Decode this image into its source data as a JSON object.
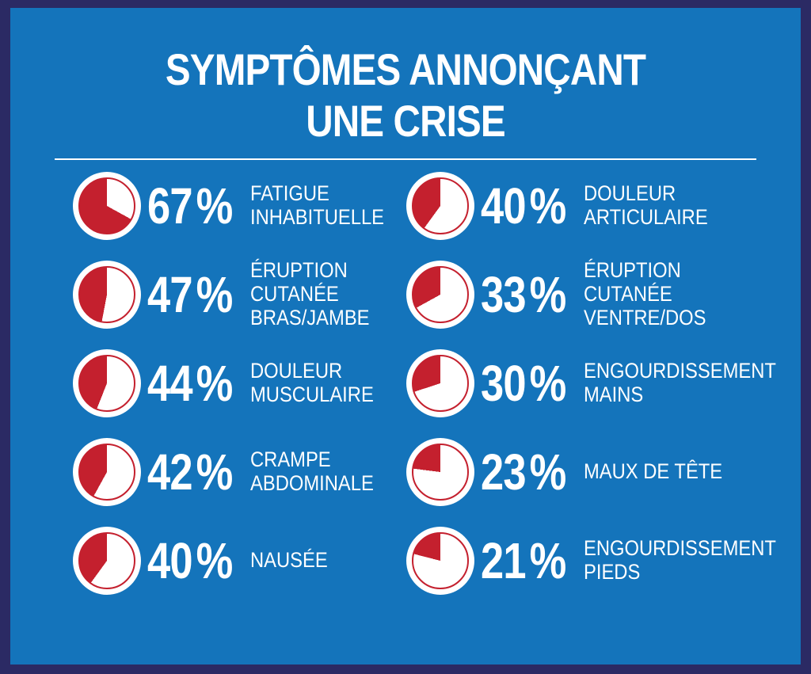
{
  "title": {
    "line1": "SYMPTÔMES ANNONÇANT",
    "line2": "UNE CRISE"
  },
  "colors": {
    "background": "#1474bb",
    "border": "#2b2a64",
    "accent_red": "#c4202e",
    "text": "#ffffff"
  },
  "chart_data": {
    "type": "pie",
    "title": "SYMPTÔMES ANNONÇANT UNE CRISE",
    "unit": "%",
    "legend_position": "none",
    "items": [
      {
        "value": 67,
        "label": "FATIGUE INHABITUELLE",
        "label_lines": [
          "FATIGUE",
          "INHABITUELLE"
        ],
        "column": "left"
      },
      {
        "value": 47,
        "label": "ÉRUPTION CUTANÉE BRAS/JAMBE",
        "label_lines": [
          "ÉRUPTION",
          "CUTANÉE",
          "BRAS/JAMBE"
        ],
        "column": "left"
      },
      {
        "value": 44,
        "label": "DOULEUR MUSCULAIRE",
        "label_lines": [
          "DOULEUR",
          "MUSCULAIRE"
        ],
        "column": "left"
      },
      {
        "value": 42,
        "label": "CRAMPE ABDOMINALE",
        "label_lines": [
          "CRAMPE",
          "ABDOMINALE"
        ],
        "column": "left"
      },
      {
        "value": 40,
        "label": "NAUSÉE",
        "label_lines": [
          "NAUSÉE"
        ],
        "column": "left"
      },
      {
        "value": 40,
        "label": "DOULEUR ARTICULAIRE",
        "label_lines": [
          "DOULEUR",
          "ARTICULAIRE"
        ],
        "column": "right"
      },
      {
        "value": 33,
        "label": "ÉRUPTION CUTANÉE VENTRE/DOS",
        "label_lines": [
          "ÉRUPTION",
          "CUTANÉE",
          "VENTRE/DOS"
        ],
        "column": "right"
      },
      {
        "value": 30,
        "label": "ENGOURDISSEMENT MAINS",
        "label_lines": [
          "ENGOURDISSEMENT",
          "MAINS"
        ],
        "column": "right"
      },
      {
        "value": 23,
        "label": "MAUX DE TÊTE",
        "label_lines": [
          "MAUX DE TÊTE"
        ],
        "column": "right"
      },
      {
        "value": 21,
        "label": "ENGOURDISSEMENT PIEDS",
        "label_lines": [
          "ENGOURDISSEMENT",
          "PIEDS"
        ],
        "column": "right"
      }
    ]
  }
}
